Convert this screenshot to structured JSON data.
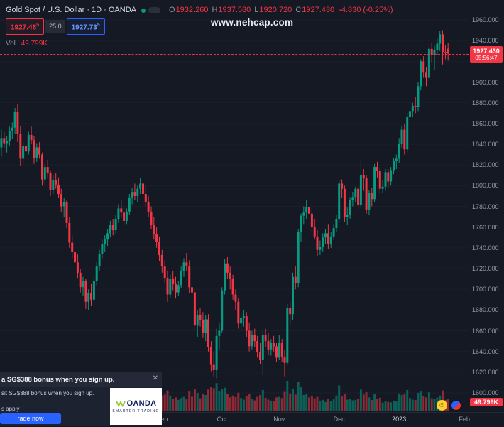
{
  "header": {
    "title": "Gold Spot / U.S. Dollar · 1D · OANDA",
    "ohlc": {
      "o_label": "O",
      "o": "1932.260",
      "h_label": "H",
      "h": "1937.580",
      "l_label": "L",
      "l": "1920.720",
      "c_label": "C",
      "c": "1927.430",
      "change": "-4.830 (-0.25%)"
    },
    "sell_price": "1927.48",
    "sell_sup": "5",
    "spread": "25.0",
    "buy_price": "1927.73",
    "buy_sup": "5",
    "vol_label": "Vol",
    "vol_value": "49.799K"
  },
  "watermark": "www.nehcap.com",
  "price_scale": {
    "current_price": "1927.430",
    "countdown": "05:56:47",
    "volume_badge": "49.799K"
  },
  "icons": {
    "smiley": "☺",
    "close": "✕"
  },
  "ad": {
    "headline": "a SG$388 bonus when you sign up.",
    "line1": "sit SG$388 bonus when you sign up.",
    "line2": "s apply",
    "cta": "rade now",
    "brand": "OANDA",
    "tagline": "SMARTER TRADING"
  },
  "chart_data": {
    "type": "candlestick",
    "title": "Gold Spot / U.S. Dollar",
    "interval": "1D",
    "exchange": "OANDA",
    "up_color": "#089981",
    "down_color": "#f23645",
    "grid_color": "#1a1f2b",
    "price_axis": {
      "min": 1600,
      "max": 1960,
      "step": 20,
      "decimals": 3
    },
    "time_axis": {
      "labels": [
        {
          "index": 59,
          "label": "Sep"
        },
        {
          "index": 81,
          "label": "Oct"
        },
        {
          "index": 102,
          "label": "Nov"
        },
        {
          "index": 124,
          "label": "Dec"
        },
        {
          "index": 146,
          "label": "2023",
          "year": true
        },
        {
          "index": 170,
          "label": "Feb"
        }
      ]
    },
    "future_slots": 7,
    "last": {
      "open": 1932.26,
      "high": 1937.58,
      "low": 1920.72,
      "close": 1927.43,
      "change": -4.83,
      "change_pct": -0.25,
      "volume_k": 49.799
    },
    "candles": [
      [
        1837,
        1854,
        1828,
        1846,
        58
      ],
      [
        1846,
        1852,
        1836,
        1841,
        44
      ],
      [
        1841,
        1848,
        1832,
        1843,
        40
      ],
      [
        1843,
        1857,
        1838,
        1853,
        47
      ],
      [
        1853,
        1861,
        1845,
        1856,
        42
      ],
      [
        1856,
        1875,
        1850,
        1871,
        65
      ],
      [
        1871,
        1879,
        1842,
        1850,
        85
      ],
      [
        1850,
        1858,
        1819,
        1826,
        95
      ],
      [
        1826,
        1843,
        1821,
        1838,
        60
      ],
      [
        1838,
        1846,
        1828,
        1833,
        42
      ],
      [
        1833,
        1852,
        1830,
        1849,
        48
      ],
      [
        1849,
        1857,
        1840,
        1844,
        40
      ],
      [
        1844,
        1848,
        1821,
        1827,
        52
      ],
      [
        1827,
        1841,
        1823,
        1837,
        45
      ],
      [
        1837,
        1842,
        1826,
        1830,
        41
      ],
      [
        1830,
        1832,
        1800,
        1806,
        58
      ],
      [
        1806,
        1822,
        1802,
        1818,
        50
      ],
      [
        1818,
        1825,
        1808,
        1812,
        45
      ],
      [
        1812,
        1815,
        1790,
        1796,
        62
      ],
      [
        1796,
        1810,
        1792,
        1805,
        48
      ],
      [
        1805,
        1812,
        1797,
        1801,
        44
      ],
      [
        1801,
        1808,
        1788,
        1792,
        55
      ],
      [
        1792,
        1797,
        1775,
        1780,
        60
      ],
      [
        1780,
        1788,
        1770,
        1784,
        46
      ],
      [
        1784,
        1786,
        1759,
        1764,
        68
      ],
      [
        1764,
        1770,
        1740,
        1745,
        80
      ],
      [
        1745,
        1752,
        1730,
        1736,
        72
      ],
      [
        1736,
        1742,
        1721,
        1726,
        64
      ],
      [
        1726,
        1734,
        1711,
        1716,
        70
      ],
      [
        1716,
        1720,
        1697,
        1702,
        85
      ],
      [
        1702,
        1712,
        1694,
        1708,
        60
      ],
      [
        1708,
        1710,
        1681,
        1688,
        90
      ],
      [
        1688,
        1700,
        1680,
        1696,
        75
      ],
      [
        1696,
        1705,
        1684,
        1690,
        58
      ],
      [
        1690,
        1712,
        1688,
        1708,
        62
      ],
      [
        1708,
        1726,
        1704,
        1722,
        66
      ],
      [
        1722,
        1738,
        1718,
        1734,
        58
      ],
      [
        1734,
        1748,
        1730,
        1744,
        52
      ],
      [
        1744,
        1752,
        1736,
        1748,
        44
      ],
      [
        1748,
        1758,
        1742,
        1754,
        46
      ],
      [
        1754,
        1766,
        1750,
        1762,
        50
      ],
      [
        1762,
        1768,
        1752,
        1757,
        42
      ],
      [
        1757,
        1772,
        1754,
        1768,
        48
      ],
      [
        1768,
        1782,
        1764,
        1778,
        54
      ],
      [
        1778,
        1786,
        1770,
        1774,
        40
      ],
      [
        1774,
        1780,
        1762,
        1766,
        45
      ],
      [
        1766,
        1778,
        1763,
        1775,
        38
      ],
      [
        1775,
        1792,
        1772,
        1788,
        56
      ],
      [
        1788,
        1798,
        1782,
        1794,
        50
      ],
      [
        1794,
        1802,
        1786,
        1790,
        46
      ],
      [
        1790,
        1800,
        1784,
        1797,
        41
      ],
      [
        1797,
        1807,
        1792,
        1802,
        58
      ],
      [
        1802,
        1805,
        1788,
        1792,
        49
      ],
      [
        1792,
        1800,
        1780,
        1784,
        52
      ],
      [
        1784,
        1790,
        1770,
        1775,
        57
      ],
      [
        1775,
        1780,
        1758,
        1762,
        63
      ],
      [
        1762,
        1770,
        1748,
        1753,
        60
      ],
      [
        1753,
        1760,
        1740,
        1746,
        55
      ],
      [
        1746,
        1751,
        1727,
        1733,
        68
      ],
      [
        1733,
        1738,
        1716,
        1722,
        62
      ],
      [
        1722,
        1728,
        1706,
        1711,
        70
      ],
      [
        1711,
        1718,
        1688,
        1695,
        88
      ],
      [
        1695,
        1714,
        1692,
        1710,
        66
      ],
      [
        1710,
        1718,
        1699,
        1705,
        52
      ],
      [
        1705,
        1712,
        1691,
        1697,
        58
      ],
      [
        1697,
        1708,
        1694,
        1704,
        47
      ],
      [
        1704,
        1722,
        1701,
        1718,
        55
      ],
      [
        1718,
        1730,
        1712,
        1726,
        60
      ],
      [
        1726,
        1735,
        1718,
        1722,
        49
      ],
      [
        1722,
        1728,
        1696,
        1702,
        84
      ],
      [
        1702,
        1706,
        1693,
        1697,
        61
      ],
      [
        1697,
        1701,
        1660,
        1665,
        95
      ],
      [
        1665,
        1680,
        1654,
        1675,
        77
      ],
      [
        1675,
        1682,
        1664,
        1670,
        54
      ],
      [
        1670,
        1678,
        1653,
        1658,
        72
      ],
      [
        1658,
        1675,
        1650,
        1671,
        68
      ],
      [
        1671,
        1676,
        1640,
        1644,
        92
      ],
      [
        1644,
        1650,
        1621,
        1627,
        105
      ],
      [
        1627,
        1640,
        1615,
        1622,
        98
      ],
      [
        1622,
        1662,
        1614,
        1655,
        120
      ],
      [
        1655,
        1668,
        1641,
        1660,
        86
      ],
      [
        1660,
        1702,
        1658,
        1699,
        95
      ],
      [
        1699,
        1729,
        1695,
        1725,
        100
      ],
      [
        1725,
        1731,
        1710,
        1716,
        72
      ],
      [
        1716,
        1722,
        1700,
        1710,
        58
      ],
      [
        1710,
        1714,
        1690,
        1695,
        66
      ],
      [
        1695,
        1700,
        1680,
        1688,
        59
      ],
      [
        1688,
        1692,
        1662,
        1667,
        78
      ],
      [
        1667,
        1677,
        1660,
        1672,
        55
      ],
      [
        1672,
        1680,
        1664,
        1674,
        48
      ],
      [
        1674,
        1678,
        1654,
        1660,
        62
      ],
      [
        1660,
        1668,
        1640,
        1645,
        74
      ],
      [
        1645,
        1660,
        1642,
        1656,
        52
      ],
      [
        1656,
        1662,
        1644,
        1650,
        45
      ],
      [
        1650,
        1655,
        1634,
        1639,
        60
      ],
      [
        1639,
        1648,
        1628,
        1632,
        68
      ],
      [
        1632,
        1660,
        1617,
        1656,
        90
      ],
      [
        1656,
        1662,
        1644,
        1650,
        56
      ],
      [
        1650,
        1658,
        1637,
        1642,
        48
      ],
      [
        1642,
        1652,
        1636,
        1648,
        44
      ],
      [
        1648,
        1655,
        1640,
        1645,
        42
      ],
      [
        1645,
        1648,
        1630,
        1634,
        58
      ],
      [
        1634,
        1656,
        1632,
        1648,
        60
      ],
      [
        1648,
        1652,
        1630,
        1635,
        55
      ],
      [
        1635,
        1641,
        1616,
        1629,
        82
      ],
      [
        1629,
        1686,
        1627,
        1682,
        130
      ],
      [
        1682,
        1688,
        1666,
        1676,
        75
      ],
      [
        1676,
        1716,
        1670,
        1712,
        95
      ],
      [
        1712,
        1722,
        1700,
        1706,
        70
      ],
      [
        1706,
        1758,
        1702,
        1755,
        125
      ],
      [
        1755,
        1773,
        1746,
        1771,
        105
      ],
      [
        1771,
        1780,
        1763,
        1774,
        68
      ],
      [
        1774,
        1786,
        1768,
        1779,
        72
      ],
      [
        1779,
        1784,
        1766,
        1773,
        58
      ],
      [
        1773,
        1778,
        1754,
        1760,
        62
      ],
      [
        1760,
        1768,
        1748,
        1751,
        54
      ],
      [
        1751,
        1757,
        1732,
        1738,
        60
      ],
      [
        1738,
        1747,
        1733,
        1741,
        44
      ],
      [
        1741,
        1754,
        1736,
        1750,
        47
      ],
      [
        1750,
        1758,
        1744,
        1754,
        38
      ],
      [
        1754,
        1763,
        1739,
        1744,
        52
      ],
      [
        1744,
        1755,
        1740,
        1751,
        43
      ],
      [
        1751,
        1763,
        1748,
        1759,
        49
      ],
      [
        1759,
        1772,
        1755,
        1768,
        66
      ],
      [
        1768,
        1805,
        1765,
        1802,
        110
      ],
      [
        1802,
        1806,
        1788,
        1797,
        62
      ],
      [
        1797,
        1800,
        1765,
        1770,
        72
      ],
      [
        1770,
        1779,
        1762,
        1772,
        48
      ],
      [
        1772,
        1789,
        1768,
        1786,
        52
      ],
      [
        1786,
        1794,
        1780,
        1789,
        45
      ],
      [
        1789,
        1799,
        1784,
        1797,
        47
      ],
      [
        1797,
        1800,
        1777,
        1781,
        53
      ],
      [
        1781,
        1824,
        1778,
        1810,
        92
      ],
      [
        1810,
        1816,
        1795,
        1807,
        70
      ],
      [
        1807,
        1810,
        1773,
        1777,
        80
      ],
      [
        1777,
        1796,
        1772,
        1793,
        58
      ],
      [
        1793,
        1798,
        1780,
        1787,
        46
      ],
      [
        1787,
        1821,
        1784,
        1818,
        72
      ],
      [
        1818,
        1823,
        1808,
        1814,
        50
      ],
      [
        1814,
        1818,
        1792,
        1797,
        56
      ],
      [
        1797,
        1805,
        1793,
        1799,
        35
      ],
      [
        1799,
        1816,
        1795,
        1813,
        40
      ],
      [
        1813,
        1816,
        1798,
        1804,
        38
      ],
      [
        1804,
        1818,
        1800,
        1815,
        36
      ],
      [
        1815,
        1827,
        1811,
        1824,
        44
      ],
      [
        1824,
        1830,
        1816,
        1826,
        40
      ],
      [
        1826,
        1846,
        1822,
        1840,
        75
      ],
      [
        1840,
        1858,
        1836,
        1854,
        68
      ],
      [
        1854,
        1860,
        1830,
        1835,
        72
      ],
      [
        1835,
        1870,
        1832,
        1866,
        90
      ],
      [
        1866,
        1876,
        1860,
        1872,
        55
      ],
      [
        1872,
        1880,
        1866,
        1877,
        48
      ],
      [
        1877,
        1886,
        1870,
        1876,
        46
      ],
      [
        1876,
        1900,
        1872,
        1896,
        78
      ],
      [
        1896,
        1922,
        1892,
        1920,
        85
      ],
      [
        1920,
        1925,
        1904,
        1909,
        62
      ],
      [
        1909,
        1914,
        1896,
        1904,
        58
      ],
      [
        1904,
        1936,
        1900,
        1932,
        80
      ],
      [
        1932,
        1938,
        1919,
        1926,
        54
      ],
      [
        1926,
        1935,
        1912,
        1931,
        50
      ],
      [
        1931,
        1942,
        1926,
        1937,
        57
      ],
      [
        1937,
        1949,
        1930,
        1946,
        66
      ],
      [
        1946,
        1950,
        1917,
        1929,
        88
      ],
      [
        1929,
        1936,
        1922,
        1928,
        47
      ],
      [
        1932.26,
        1937.58,
        1920.72,
        1927.43,
        49.799
      ]
    ]
  }
}
